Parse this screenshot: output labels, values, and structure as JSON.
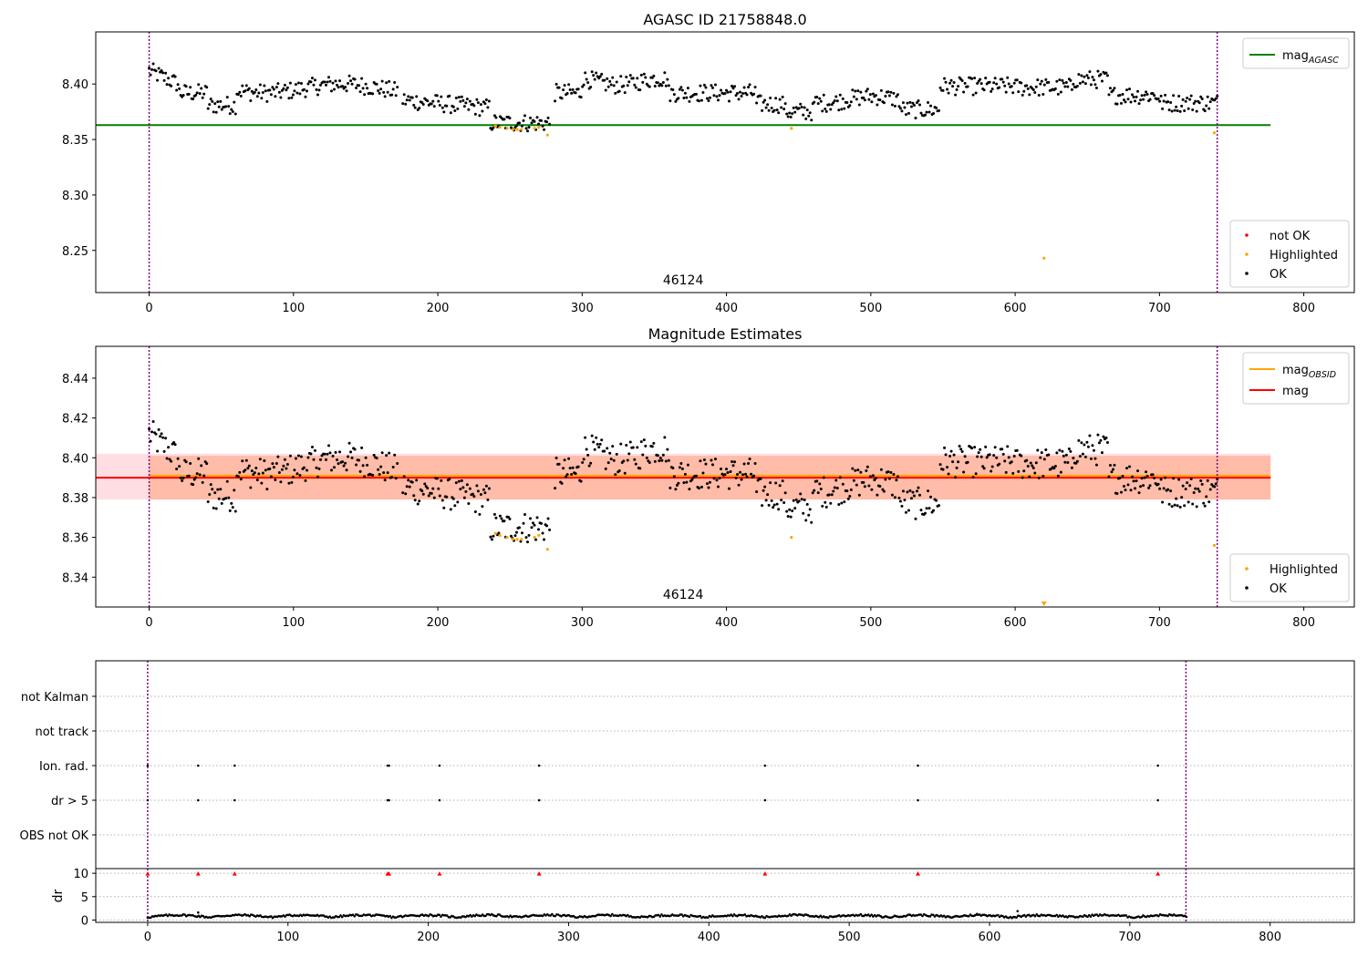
{
  "chart_data": [
    {
      "type": "scatter",
      "title": "AGASC ID 21758848.0",
      "xlim": [
        -37,
        835
      ],
      "ylim": [
        8.212,
        8.447
      ],
      "xticks": [
        0,
        100,
        200,
        300,
        400,
        500,
        600,
        700,
        800
      ],
      "yticks": [
        8.25,
        8.3,
        8.35,
        8.4
      ],
      "grid": false,
      "obsid_label": "46124",
      "obsid_label_x": 370,
      "vlines": [
        0,
        740
      ],
      "hlines": [
        {
          "name": "mag_AGASC",
          "value": 8.363,
          "x_range": [
            -37,
            777
          ],
          "color": "#008000"
        }
      ],
      "legend_lines": {
        "position": "top-right",
        "entries": [
          {
            "name": "mag",
            "sub": "AGASC",
            "color": "#008000"
          }
        ]
      },
      "legend_points": {
        "position": "bottom-right",
        "entries": [
          {
            "name": "not OK",
            "color": "#ff0000"
          },
          {
            "name": "Highlighted",
            "color": "#ffa500"
          },
          {
            "name": "OK",
            "color": "#000000"
          }
        ]
      },
      "highlighted_points": {
        "color": "#ffa500",
        "x": [
          240,
          243,
          248,
          252,
          255,
          258,
          267,
          270,
          276,
          445,
          620,
          738
        ],
        "y": [
          8.362,
          8.361,
          8.36,
          8.359,
          8.359,
          8.359,
          8.36,
          8.361,
          8.354,
          8.36,
          8.243,
          8.356
        ]
      }
    },
    {
      "type": "scatter",
      "title": "Magnitude Estimates",
      "xlim": [
        -37,
        835
      ],
      "ylim": [
        8.325,
        8.456
      ],
      "xticks": [
        0,
        100,
        200,
        300,
        400,
        500,
        600,
        700,
        800
      ],
      "yticks": [
        8.34,
        8.36,
        8.38,
        8.4,
        8.42,
        8.44
      ],
      "grid": false,
      "obsid_label": "46124",
      "obsid_label_x": 370,
      "vlines": [
        0,
        740
      ],
      "bands": [
        {
          "name": "mag error",
          "range": [
            8.379,
            8.402
          ],
          "x_range": [
            -37,
            777
          ],
          "color": "#ffb6c1"
        },
        {
          "name": "mag_OBSID error",
          "range": [
            8.379,
            8.401
          ],
          "x_range": [
            0,
            777
          ],
          "color": "#ffa07a"
        }
      ],
      "hlines": [
        {
          "name": "mag_OBSID",
          "value": 8.391,
          "x_range": [
            0,
            777
          ],
          "color": "#ffa500"
        },
        {
          "name": "mag",
          "value": 8.39,
          "x_range": [
            -37,
            777
          ],
          "color": "#ff0000"
        }
      ],
      "legend_lines": {
        "position": "top-right",
        "entries": [
          {
            "name": "mag",
            "sub": "OBSID",
            "color": "#ffa500"
          },
          {
            "name": "mag",
            "sub": "",
            "color": "#ff0000"
          }
        ]
      },
      "legend_points": {
        "position": "bottom-right",
        "entries": [
          {
            "name": "Highlighted",
            "color": "#ffa500"
          },
          {
            "name": "OK",
            "color": "#000000"
          }
        ]
      },
      "highlighted_points": {
        "color": "#ffa500",
        "x": [
          240,
          243,
          248,
          252,
          255,
          258,
          267,
          270,
          276,
          445,
          738
        ],
        "y": [
          8.362,
          8.361,
          8.36,
          8.359,
          8.359,
          8.359,
          8.36,
          8.361,
          8.354,
          8.36,
          8.356
        ]
      },
      "clipped_markers": {
        "color": "#ffa500",
        "x": [
          620
        ]
      }
    },
    {
      "type": "scatter",
      "title": "",
      "xlim": [
        -37,
        860
      ],
      "xticks": [
        0,
        100,
        200,
        300,
        400,
        500,
        600,
        700,
        800
      ],
      "vlines": [
        0,
        740
      ],
      "flag_rows": [
        "not Kalman",
        "not track",
        "Ion. rad.",
        "dr > 5",
        "OBS not OK"
      ],
      "flag_points": {
        "Ion. rad.": [
          0,
          36,
          62,
          171,
          172,
          208,
          279,
          440,
          549,
          720
        ],
        "dr > 5": [
          0,
          36,
          62,
          171,
          172,
          208,
          279,
          440,
          549,
          720
        ]
      },
      "dr_panel": {
        "ylabel": "dr",
        "ylim": [
          -0.5,
          11
        ],
        "yticks": [
          0,
          5,
          10
        ],
        "clipped_points": {
          "color": "#ff0000",
          "value": 10,
          "x": [
            0,
            36,
            62,
            171,
            172,
            208,
            279,
            440,
            549,
            720
          ]
        }
      }
    }
  ]
}
